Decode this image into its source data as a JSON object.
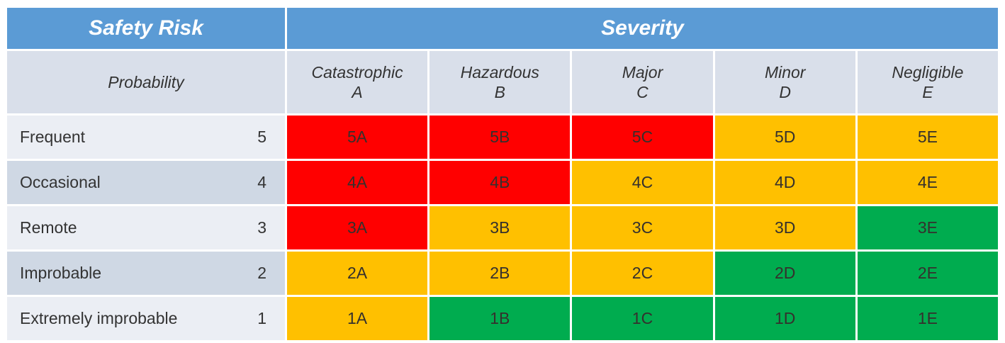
{
  "colors": {
    "header_blue": "#5B9BD5",
    "subheader_bg": "#D9DFEA",
    "row_band_light": "#EBEEF4",
    "row_band_dark": "#CFD8E4",
    "red": "#FF0000",
    "amber": "#FFC000",
    "green": "#00AC4F",
    "header_text": "#FFFFFF",
    "body_text": "#333333"
  },
  "chart_data": {
    "type": "heatmap",
    "title": "Safety Risk",
    "column_group_title": "Severity",
    "row_group_title": "Probability",
    "columns": [
      {
        "label": "Catastrophic",
        "code": "A"
      },
      {
        "label": "Hazardous",
        "code": "B"
      },
      {
        "label": "Major",
        "code": "C"
      },
      {
        "label": "Minor",
        "code": "D"
      },
      {
        "label": "Negligible",
        "code": "E"
      }
    ],
    "rows": [
      {
        "label": "Frequent",
        "level": "5"
      },
      {
        "label": "Occasional",
        "level": "4"
      },
      {
        "label": "Remote",
        "level": "3"
      },
      {
        "label": "Improbable",
        "level": "2"
      },
      {
        "label": "Extremely improbable",
        "level": "1"
      }
    ],
    "cells": [
      [
        {
          "code": "5A",
          "risk": "red"
        },
        {
          "code": "5B",
          "risk": "red"
        },
        {
          "code": "5C",
          "risk": "red"
        },
        {
          "code": "5D",
          "risk": "amber"
        },
        {
          "code": "5E",
          "risk": "amber"
        }
      ],
      [
        {
          "code": "4A",
          "risk": "red"
        },
        {
          "code": "4B",
          "risk": "red"
        },
        {
          "code": "4C",
          "risk": "amber"
        },
        {
          "code": "4D",
          "risk": "amber"
        },
        {
          "code": "4E",
          "risk": "amber"
        }
      ],
      [
        {
          "code": "3A",
          "risk": "red"
        },
        {
          "code": "3B",
          "risk": "amber"
        },
        {
          "code": "3C",
          "risk": "amber"
        },
        {
          "code": "3D",
          "risk": "amber"
        },
        {
          "code": "3E",
          "risk": "green"
        }
      ],
      [
        {
          "code": "2A",
          "risk": "amber"
        },
        {
          "code": "2B",
          "risk": "amber"
        },
        {
          "code": "2C",
          "risk": "amber"
        },
        {
          "code": "2D",
          "risk": "green"
        },
        {
          "code": "2E",
          "risk": "green"
        }
      ],
      [
        {
          "code": "1A",
          "risk": "amber"
        },
        {
          "code": "1B",
          "risk": "green"
        },
        {
          "code": "1C",
          "risk": "green"
        },
        {
          "code": "1D",
          "risk": "green"
        },
        {
          "code": "1E",
          "risk": "green"
        }
      ]
    ]
  }
}
